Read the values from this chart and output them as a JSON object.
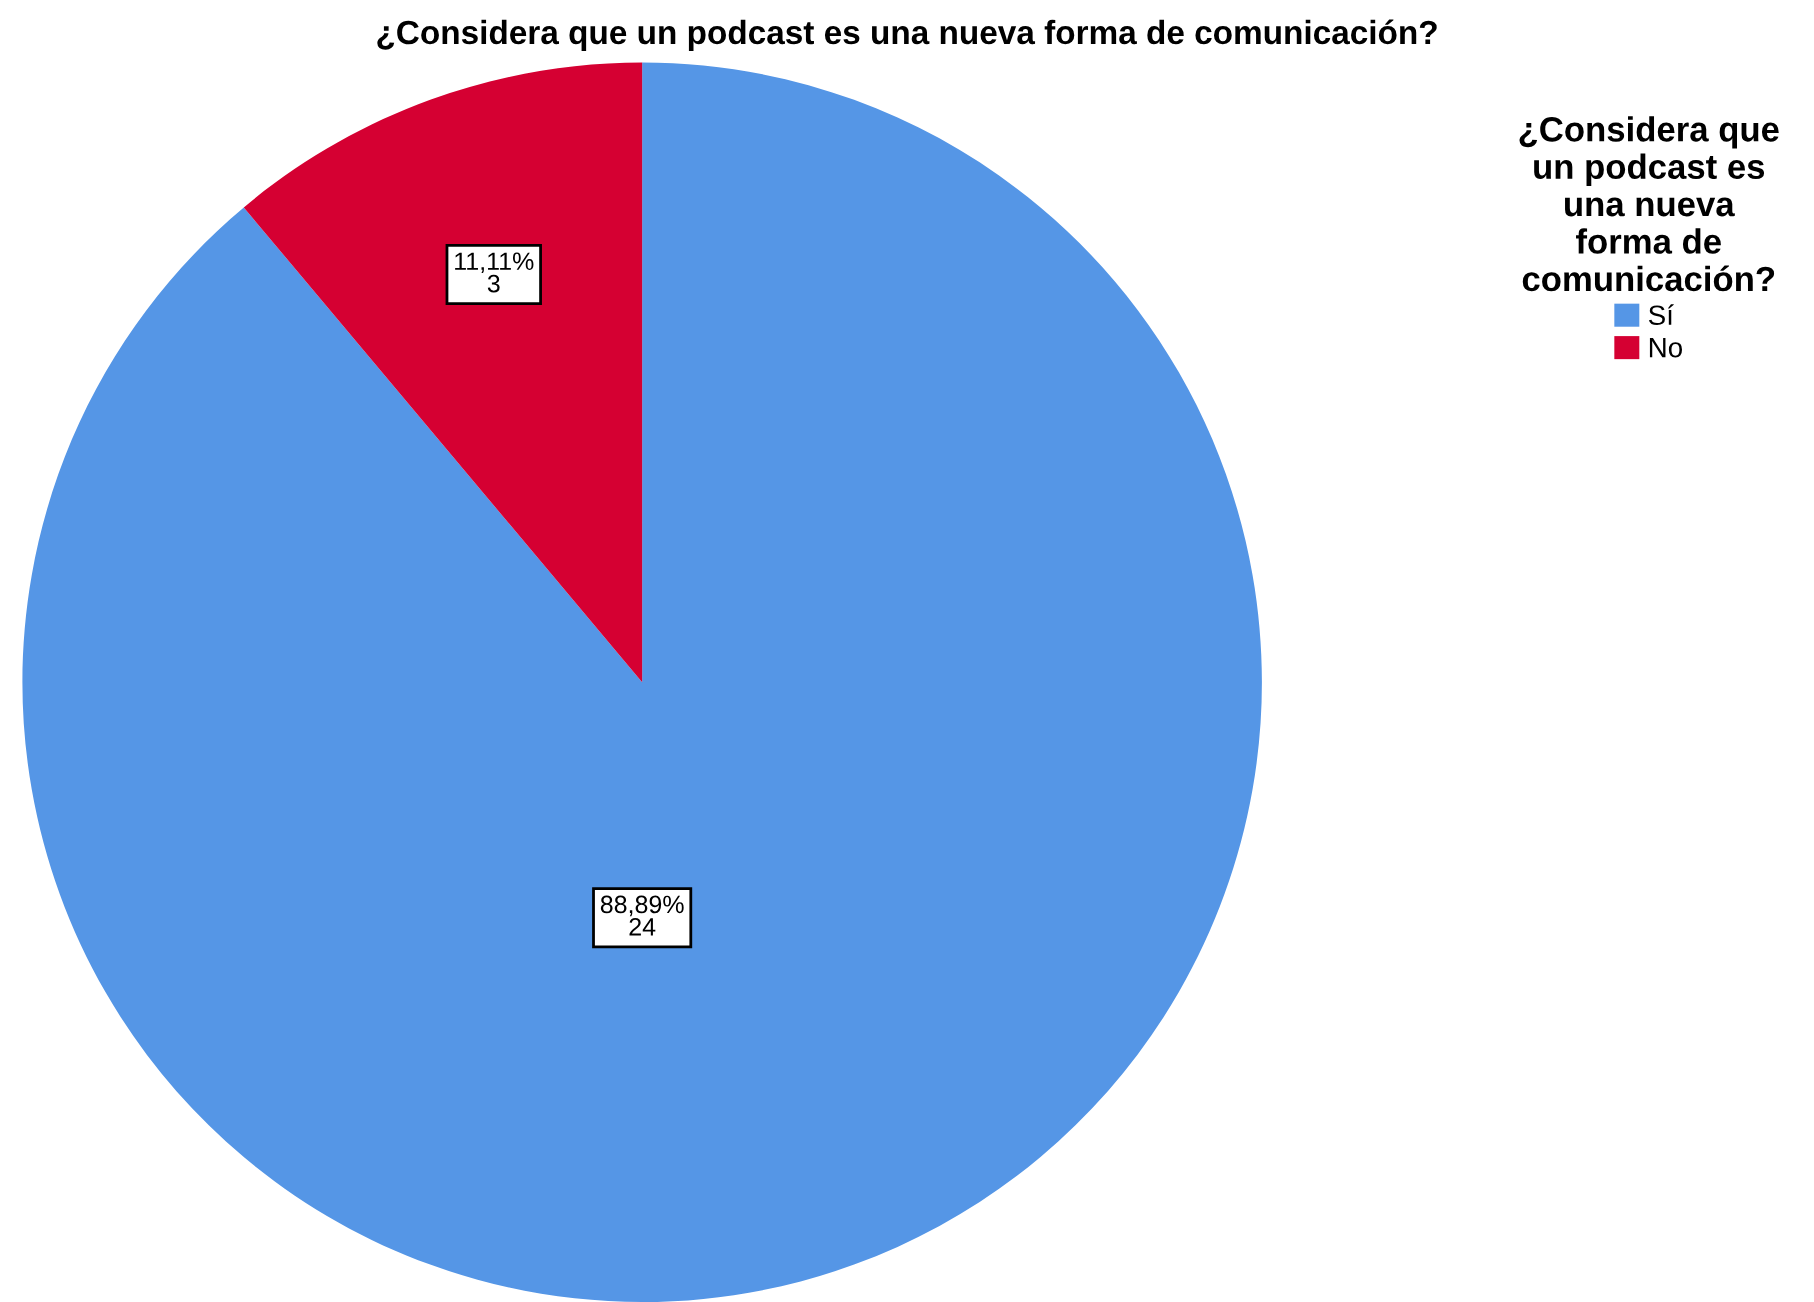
{
  "chart_data": {
    "type": "pie",
    "title": "¿Considera que un podcast es una nueva forma de comunicación?",
    "legend_title": "¿Considera que\nun podcast es\nuna nueva\nforma de\ncomunicación?",
    "categories": [
      "Sí",
      "No"
    ],
    "values": [
      24,
      3
    ],
    "colors": [
      "#5596e6",
      "#d50032"
    ],
    "value_labels": [
      "88,89%\n24",
      "11,11%\n3"
    ],
    "legend": "top right"
  }
}
